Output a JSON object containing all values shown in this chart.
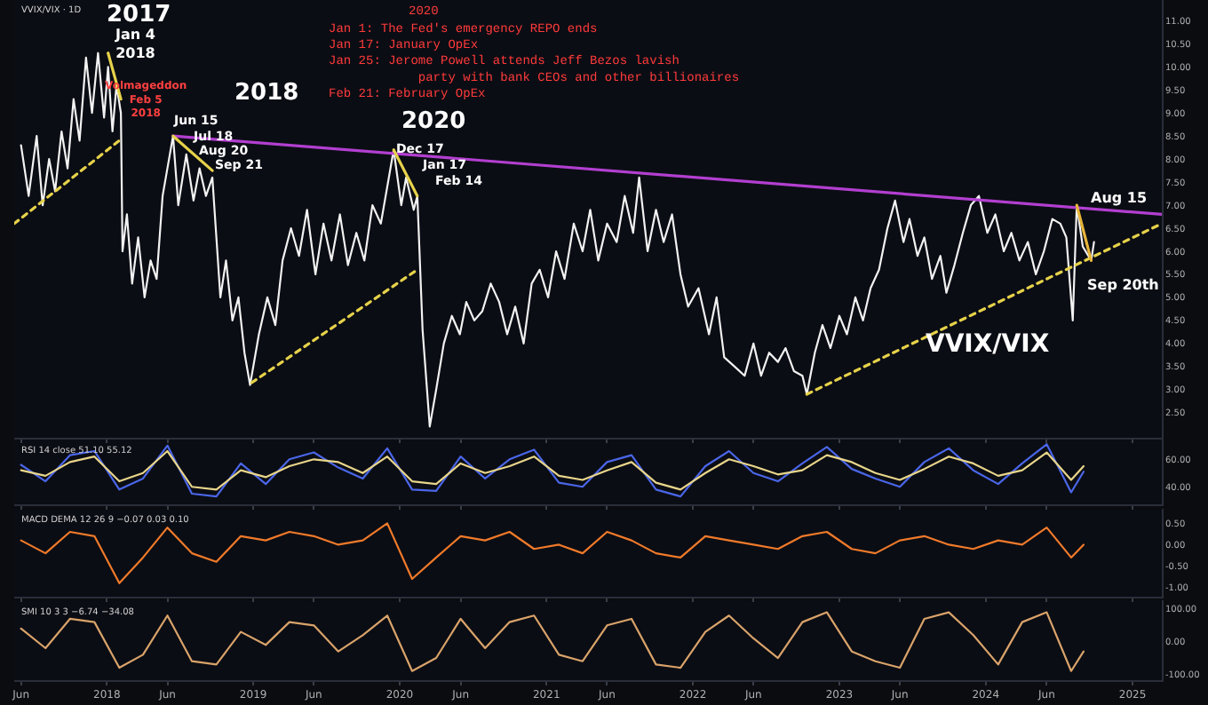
{
  "chart_data": [
    {
      "type": "line",
      "xlim": [
        "2017-05-15",
        "2025-03-15"
      ],
      "ylim": [
        1.95,
        11.45
      ],
      "tick_labels": "y",
      "grid": false,
      "yticks": [
        {
          "value": 2.5,
          "label": "2.50"
        },
        {
          "value": 3.0,
          "label": "3.00"
        },
        {
          "value": 3.5,
          "label": "3.50"
        },
        {
          "value": 4.0,
          "label": "4.00"
        },
        {
          "value": 4.5,
          "label": "4.50"
        },
        {
          "value": 5.0,
          "label": "5.00"
        },
        {
          "value": 5.5,
          "label": "5.50"
        },
        {
          "value": 6.0,
          "label": "6.00"
        },
        {
          "value": 6.5,
          "label": "6.50"
        },
        {
          "value": 7.0,
          "label": "7.00"
        },
        {
          "value": 7.5,
          "label": "7.50"
        },
        {
          "value": 8.0,
          "label": "8.00"
        },
        {
          "value": 8.5,
          "label": "8.50"
        },
        {
          "value": 9.0,
          "label": "9.00"
        },
        {
          "value": 9.5,
          "label": "9.50"
        },
        {
          "value": 10.0,
          "label": "10.00"
        },
        {
          "value": 10.5,
          "label": "10.50"
        },
        {
          "value": 11.0,
          "label": "11.00"
        }
      ],
      "series": [
        {
          "type": "line",
          "color": "#f2f2f2",
          "line_style": "solid",
          "x": [
            "2017-06-01",
            "2017-06-20",
            "2017-07-10",
            "2017-07-25",
            "2017-08-10",
            "2017-08-25",
            "2017-09-10",
            "2017-09-25",
            "2017-10-10",
            "2017-10-25",
            "2017-11-10",
            "2017-11-25",
            "2017-12-10",
            "2017-12-25",
            "2018-01-04",
            "2018-01-15",
            "2018-01-25",
            "2018-02-05",
            "2018-02-09",
            "2018-02-20",
            "2018-03-05",
            "2018-03-20",
            "2018-04-05",
            "2018-04-20",
            "2018-05-05",
            "2018-05-20",
            "2018-06-15",
            "2018-06-28",
            "2018-07-18",
            "2018-08-05",
            "2018-08-20",
            "2018-09-05",
            "2018-09-21",
            "2018-10-11",
            "2018-10-25",
            "2018-11-10",
            "2018-11-25",
            "2018-12-10",
            "2018-12-24",
            "2019-01-15",
            "2019-02-05",
            "2019-02-25",
            "2019-03-15",
            "2019-04-05",
            "2019-04-25",
            "2019-05-15",
            "2019-06-05",
            "2019-06-25",
            "2019-07-15",
            "2019-08-05",
            "2019-08-25",
            "2019-09-15",
            "2019-10-05",
            "2019-10-25",
            "2019-11-15",
            "2019-12-17",
            "2020-01-05",
            "2020-01-17",
            "2020-02-05",
            "2020-02-14",
            "2020-02-27",
            "2020-03-16",
            "2020-04-01",
            "2020-04-20",
            "2020-05-10",
            "2020-05-30",
            "2020-06-15",
            "2020-07-05",
            "2020-07-25",
            "2020-08-15",
            "2020-09-05",
            "2020-09-25",
            "2020-10-15",
            "2020-11-05",
            "2020-11-25",
            "2020-12-15",
            "2021-01-05",
            "2021-01-25",
            "2021-02-15",
            "2021-03-10",
            "2021-04-01",
            "2021-04-20",
            "2021-05-10",
            "2021-06-01",
            "2021-06-25",
            "2021-07-15",
            "2021-08-05",
            "2021-08-20",
            "2021-09-10",
            "2021-10-01",
            "2021-10-20",
            "2021-11-10",
            "2021-12-01",
            "2021-12-20",
            "2022-01-15",
            "2022-02-10",
            "2022-03-01",
            "2022-03-20",
            "2022-04-15",
            "2022-05-10",
            "2022-06-01",
            "2022-06-20",
            "2022-07-10",
            "2022-08-01",
            "2022-08-20",
            "2022-09-10",
            "2022-10-01",
            "2022-10-12",
            "2022-11-01",
            "2022-11-20",
            "2022-12-10",
            "2023-01-01",
            "2023-01-20",
            "2023-02-10",
            "2023-03-01",
            "2023-03-20",
            "2023-04-10",
            "2023-05-01",
            "2023-05-20",
            "2023-06-10",
            "2023-06-25",
            "2023-07-15",
            "2023-08-01",
            "2023-08-20",
            "2023-09-10",
            "2023-09-25",
            "2023-10-15",
            "2023-11-05",
            "2023-11-25",
            "2023-12-15",
            "2024-01-05",
            "2024-01-25",
            "2024-02-15",
            "2024-03-05",
            "2024-03-25",
            "2024-04-15",
            "2024-05-05",
            "2024-05-25",
            "2024-06-15",
            "2024-07-05",
            "2024-07-20",
            "2024-08-05",
            "2024-08-15",
            "2024-08-30",
            "2024-09-20",
            "2024-09-27"
          ],
          "values": [
            8.3,
            7.2,
            8.5,
            7.0,
            8.0,
            7.3,
            8.6,
            7.8,
            9.3,
            8.4,
            10.2,
            9.0,
            10.3,
            8.9,
            10.0,
            8.6,
            9.6,
            9.0,
            6.0,
            6.8,
            5.3,
            6.3,
            5.0,
            5.8,
            5.4,
            7.2,
            8.5,
            7.0,
            8.1,
            7.1,
            7.8,
            7.2,
            7.6,
            5.0,
            5.8,
            4.5,
            5.0,
            3.8,
            3.1,
            4.2,
            5.0,
            4.4,
            5.8,
            6.5,
            5.9,
            6.9,
            5.5,
            6.6,
            5.8,
            6.8,
            5.7,
            6.4,
            5.8,
            7.0,
            6.6,
            8.2,
            7.0,
            7.6,
            6.9,
            7.2,
            4.3,
            2.2,
            3.0,
            4.0,
            4.6,
            4.2,
            4.9,
            4.5,
            4.7,
            5.3,
            4.9,
            4.2,
            4.8,
            4.0,
            5.3,
            5.6,
            5.0,
            6.0,
            5.4,
            6.6,
            6.0,
            6.9,
            5.8,
            6.6,
            6.2,
            7.2,
            6.4,
            7.6,
            6.0,
            6.9,
            6.2,
            6.8,
            5.5,
            4.8,
            5.2,
            4.2,
            5.0,
            3.7,
            3.5,
            3.3,
            4.0,
            3.3,
            3.8,
            3.6,
            3.9,
            3.4,
            3.3,
            2.9,
            3.8,
            4.4,
            3.9,
            4.6,
            4.2,
            5.0,
            4.5,
            5.2,
            5.6,
            6.5,
            7.1,
            6.2,
            6.7,
            5.9,
            6.3,
            5.4,
            5.9,
            5.1,
            5.7,
            6.4,
            7.0,
            7.2,
            6.4,
            6.8,
            6.0,
            6.4,
            5.8,
            6.2,
            5.5,
            6.0,
            6.7,
            6.6,
            6.3,
            4.5,
            7.0,
            6.1,
            5.8,
            6.2
          ]
        },
        {
          "type": "line",
          "color": "#b23fd0",
          "line_style": "solid",
          "x": [
            "2018-06-15",
            "2025-03-15"
          ],
          "values": [
            8.5,
            6.8
          ]
        },
        {
          "type": "line",
          "color": "#e6d24a",
          "line_style": "dotted",
          "x": [
            "2017-05-15",
            "2018-02-01"
          ],
          "values": [
            6.6,
            8.4
          ]
        },
        {
          "type": "line",
          "color": "#e6d24a",
          "line_style": "dotted",
          "x": [
            "2018-12-28",
            "2020-02-14"
          ],
          "values": [
            3.15,
            5.6
          ]
        },
        {
          "type": "line",
          "color": "#e6d24a",
          "line_style": "dotted",
          "x": [
            "2022-10-12",
            "2025-03-15"
          ],
          "values": [
            2.9,
            6.6
          ]
        },
        {
          "type": "line",
          "color": "#e6d24a",
          "line_style": "solid",
          "x": [
            "2018-01-04",
            "2018-02-05"
          ],
          "values": [
            10.3,
            9.3
          ]
        },
        {
          "type": "line",
          "color": "#e6d24a",
          "line_style": "solid",
          "x": [
            "2018-06-15",
            "2018-09-21"
          ],
          "values": [
            8.5,
            7.75
          ]
        },
        {
          "type": "line",
          "color": "#e6d24a",
          "line_style": "solid",
          "x": [
            "2019-12-17",
            "2020-02-14"
          ],
          "values": [
            8.2,
            7.2
          ]
        },
        {
          "type": "line",
          "color": "#e6b43a",
          "line_style": "solid",
          "x": [
            "2024-08-15",
            "2024-09-20"
          ],
          "values": [
            7.0,
            5.8
          ]
        }
      ],
      "annotations": [
        "2017",
        "Jan 4\n2018",
        "Volmageddon\nFeb 5\n2018",
        "2018",
        "Jun 15",
        "Jul 18",
        "Aug 20",
        "Sep 21",
        "2020",
        "Dec 17",
        "Jan 17",
        "Feb 14",
        "Aug 15",
        "Sep 20th",
        "VVIX/VIX",
        "VVIX/VIX · 1D",
        "2020",
        "Jan 1: The Fed's emergency REPO ends\nJan 17: January OpEx\nJan 25: Jerome Powell attends Jeff Bezos lavish\n            party with bank CEOs and other billionaires\nFeb 21: February OpEx"
      ]
    },
    {
      "type": "line",
      "title": "RSI 14 close 51.10 55.12",
      "xlim": [
        "2017-05-15",
        "2025-03-15"
      ],
      "ylim": [
        27,
        75
      ],
      "tick_labels": "y",
      "grid": false,
      "yticks": [
        {
          "value": 40,
          "label": "40.00"
        },
        {
          "value": 60,
          "label": "60.00"
        }
      ],
      "x": [
        "2017-06",
        "2017-08",
        "2017-10",
        "2017-12",
        "2018-02",
        "2018-04",
        "2018-06",
        "2018-08",
        "2018-10",
        "2018-12",
        "2019-02",
        "2019-04",
        "2019-06",
        "2019-08",
        "2019-10",
        "2019-12",
        "2020-02",
        "2020-04",
        "2020-06",
        "2020-08",
        "2020-10",
        "2020-12",
        "2021-02",
        "2021-04",
        "2021-06",
        "2021-08",
        "2021-10",
        "2021-12",
        "2022-02",
        "2022-04",
        "2022-06",
        "2022-08",
        "2022-10",
        "2022-12",
        "2023-02",
        "2023-04",
        "2023-06",
        "2023-08",
        "2023-10",
        "2023-12",
        "2024-02",
        "2024-04",
        "2024-06",
        "2024-08",
        "2024-09"
      ],
      "series": [
        {
          "color": "#4a66e8",
          "values": [
            56,
            44,
            63,
            66,
            38,
            46,
            70,
            35,
            33,
            57,
            42,
            60,
            65,
            54,
            46,
            68,
            38,
            37,
            62,
            46,
            60,
            67,
            43,
            40,
            58,
            63,
            38,
            33,
            55,
            66,
            50,
            44,
            57,
            69,
            53,
            46,
            40,
            58,
            68,
            52,
            42,
            57,
            71,
            36,
            51
          ]
        },
        {
          "color": "#e8d58a",
          "values": [
            52,
            48,
            58,
            62,
            44,
            50,
            66,
            40,
            38,
            52,
            47,
            55,
            60,
            58,
            50,
            62,
            44,
            42,
            57,
            50,
            55,
            62,
            48,
            45,
            52,
            58,
            43,
            38,
            50,
            60,
            55,
            49,
            52,
            63,
            58,
            50,
            45,
            53,
            62,
            57,
            48,
            52,
            65,
            45,
            55
          ]
        }
      ]
    },
    {
      "type": "line",
      "title": "MACD DEMA 12 26 9 −0.07 0.03 0.10",
      "xlim": [
        "2017-05-15",
        "2025-03-15"
      ],
      "ylim": [
        -1.21,
        0.84
      ],
      "tick_labels": "y",
      "grid": false,
      "yticks": [
        {
          "value": -1.0,
          "label": "-1.00"
        },
        {
          "value": -0.5,
          "label": "-0.50"
        },
        {
          "value": 0.0,
          "label": "0.00"
        },
        {
          "value": 0.5,
          "label": "0.50"
        }
      ],
      "x": [
        "2017-06",
        "2017-08",
        "2017-10",
        "2017-12",
        "2018-02",
        "2018-04",
        "2018-06",
        "2018-08",
        "2018-10",
        "2018-12",
        "2019-02",
        "2019-04",
        "2019-06",
        "2019-08",
        "2019-10",
        "2019-12",
        "2020-02",
        "2020-04",
        "2020-06",
        "2020-08",
        "2020-10",
        "2020-12",
        "2021-02",
        "2021-04",
        "2021-06",
        "2021-08",
        "2021-10",
        "2021-12",
        "2022-02",
        "2022-04",
        "2022-06",
        "2022-08",
        "2022-10",
        "2022-12",
        "2023-02",
        "2023-04",
        "2023-06",
        "2023-08",
        "2023-10",
        "2023-12",
        "2024-02",
        "2024-04",
        "2024-06",
        "2024-08",
        "2024-09"
      ],
      "series": [
        {
          "color": "#f07a2a",
          "values": [
            0.1,
            -0.2,
            0.3,
            0.2,
            -0.9,
            -0.3,
            0.4,
            -0.2,
            -0.4,
            0.2,
            0.1,
            0.3,
            0.2,
            0.0,
            0.1,
            0.5,
            -0.8,
            -0.3,
            0.2,
            0.1,
            0.3,
            -0.1,
            0.0,
            -0.2,
            0.3,
            0.1,
            -0.2,
            -0.3,
            0.2,
            0.1,
            0.0,
            -0.1,
            0.2,
            0.3,
            -0.1,
            -0.2,
            0.1,
            0.2,
            0.0,
            -0.1,
            0.1,
            0.0,
            0.4,
            -0.3,
            0.0
          ]
        }
      ]
    },
    {
      "type": "line",
      "title": "SMI 10 3 3 −6.74 −34.08",
      "xlim": [
        "2017-05-15",
        "2025-03-15"
      ],
      "ylim": [
        -118,
        126
      ],
      "grid": false,
      "xticks": [
        {
          "value": "2017-06-01",
          "label": "Jun"
        },
        {
          "value": "2018-01-01",
          "label": "2018"
        },
        {
          "value": "2018-06-01",
          "label": "Jun"
        },
        {
          "value": "2019-01-01",
          "label": "2019"
        },
        {
          "value": "2019-06-01",
          "label": "Jun"
        },
        {
          "value": "2020-01-01",
          "label": "2020"
        },
        {
          "value": "2020-06-01",
          "label": "Jun"
        },
        {
          "value": "2021-01-01",
          "label": "2021"
        },
        {
          "value": "2021-06-01",
          "label": "Jun"
        },
        {
          "value": "2022-01-01",
          "label": "2022"
        },
        {
          "value": "2022-06-01",
          "label": "Jun"
        },
        {
          "value": "2023-01-01",
          "label": "2023"
        },
        {
          "value": "2023-06-01",
          "label": "Jun"
        },
        {
          "value": "2024-01-01",
          "label": "2024"
        },
        {
          "value": "2024-06-01",
          "label": "Jun"
        },
        {
          "value": "2025-01-01",
          "label": "2025"
        }
      ],
      "yticks": [
        {
          "value": -100,
          "label": "-100.00"
        },
        {
          "value": 0,
          "label": "0.00"
        },
        {
          "value": 100,
          "label": "100.00"
        }
      ],
      "x": [
        "2017-06",
        "2017-08",
        "2017-10",
        "2017-12",
        "2018-02",
        "2018-04",
        "2018-06",
        "2018-08",
        "2018-10",
        "2018-12",
        "2019-02",
        "2019-04",
        "2019-06",
        "2019-08",
        "2019-10",
        "2019-12",
        "2020-02",
        "2020-04",
        "2020-06",
        "2020-08",
        "2020-10",
        "2020-12",
        "2021-02",
        "2021-04",
        "2021-06",
        "2021-08",
        "2021-10",
        "2021-12",
        "2022-02",
        "2022-04",
        "2022-06",
        "2022-08",
        "2022-10",
        "2022-12",
        "2023-02",
        "2023-04",
        "2023-06",
        "2023-08",
        "2023-10",
        "2023-12",
        "2024-02",
        "2024-04",
        "2024-06",
        "2024-08",
        "2024-09"
      ],
      "series": [
        {
          "color": "#d9a36a",
          "values": [
            40,
            -20,
            70,
            60,
            -80,
            -40,
            80,
            -60,
            -70,
            30,
            -10,
            60,
            50,
            -30,
            20,
            80,
            -90,
            -50,
            70,
            -20,
            60,
            80,
            -40,
            -60,
            50,
            70,
            -70,
            -80,
            30,
            80,
            10,
            -50,
            60,
            90,
            -30,
            -60,
            -80,
            70,
            90,
            20,
            -70,
            60,
            90,
            -90,
            -30
          ]
        }
      ]
    }
  ]
}
